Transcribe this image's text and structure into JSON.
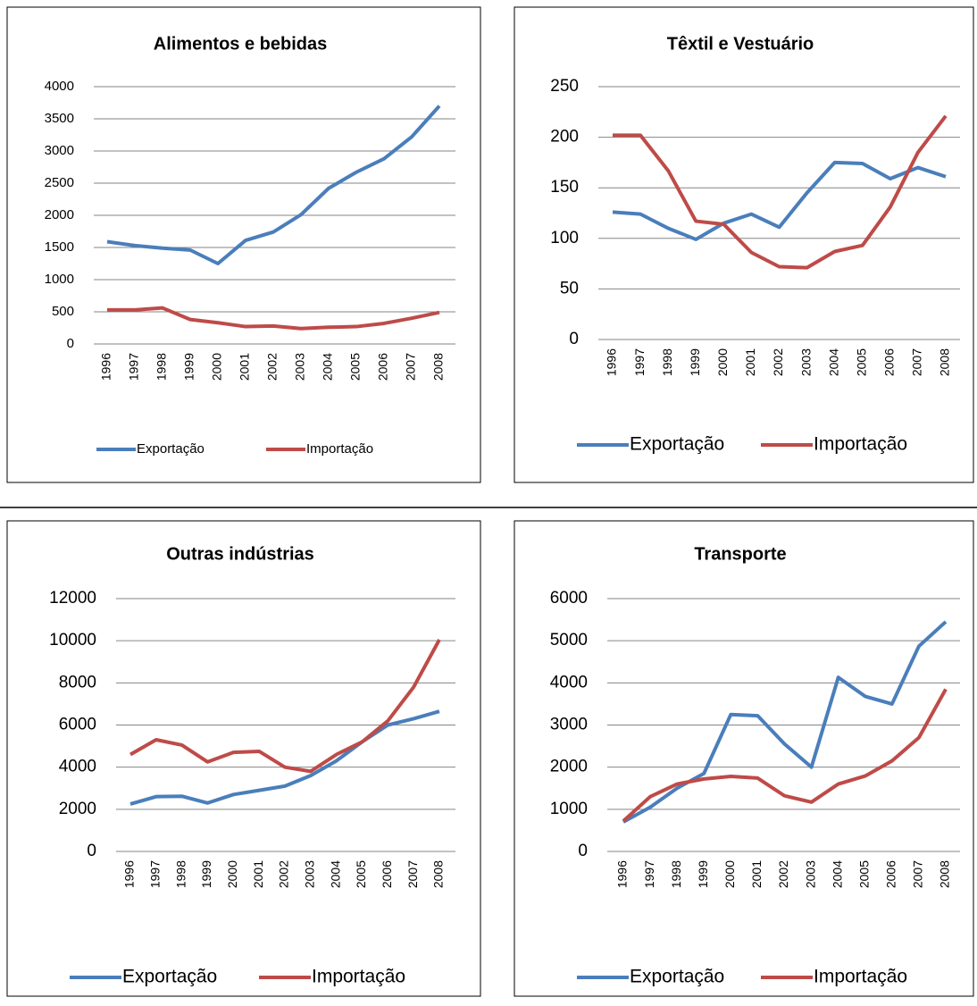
{
  "chart_data": [
    {
      "type": "line",
      "title": "Alimentos e bebidas",
      "categories": [
        "1996",
        "1997",
        "1998",
        "1999",
        "2000",
        "2001",
        "2002",
        "2003",
        "2004",
        "2005",
        "2006",
        "2007",
        "2008"
      ],
      "series": [
        {
          "name": "Exportação",
          "color": "#4a7ebb",
          "values": [
            1590,
            1530,
            1490,
            1460,
            1250,
            1610,
            1740,
            2010,
            2420,
            2670,
            2880,
            3220,
            3700
          ]
        },
        {
          "name": "Importação",
          "color": "#be4b48",
          "values": [
            530,
            530,
            560,
            380,
            330,
            270,
            280,
            240,
            260,
            270,
            320,
            400,
            490
          ]
        }
      ],
      "ylim": [
        0,
        4000
      ],
      "yticks": [
        0,
        500,
        1000,
        1500,
        2000,
        2500,
        3000,
        3500,
        4000
      ],
      "grid": true,
      "legend": "bottom"
    },
    {
      "type": "line",
      "title": "Têxtil e Vestuário",
      "categories": [
        "1996",
        "1997",
        "1998",
        "1999",
        "2000",
        "2001",
        "2002",
        "2003",
        "2004",
        "2005",
        "2006",
        "2007",
        "2008"
      ],
      "series": [
        {
          "name": "Exportação",
          "color": "#4a7ebb",
          "values": [
            126,
            124,
            110,
            99,
            115,
            124,
            111,
            145,
            175,
            174,
            159,
            170,
            161
          ]
        },
        {
          "name": "Importação",
          "color": "#be4b48",
          "values": [
            202,
            202,
            167,
            117,
            114,
            86,
            72,
            71,
            87,
            93,
            131,
            185,
            221
          ]
        }
      ],
      "ylim": [
        0,
        250
      ],
      "yticks": [
        0,
        50,
        100,
        150,
        200,
        250
      ],
      "grid": true,
      "legend": "bottom"
    },
    {
      "type": "line",
      "title": "Outras indústrias",
      "categories": [
        "1996",
        "1997",
        "1998",
        "1999",
        "2000",
        "2001",
        "2002",
        "2003",
        "2004",
        "2005",
        "2006",
        "2007",
        "2008"
      ],
      "series": [
        {
          "name": "Exportação",
          "color": "#4a7ebb",
          "values": [
            2250,
            2600,
            2620,
            2300,
            2700,
            2900,
            3100,
            3600,
            4300,
            5200,
            6000,
            6300,
            6650
          ]
        },
        {
          "name": "Importação",
          "color": "#be4b48",
          "values": [
            4600,
            5300,
            5050,
            4250,
            4700,
            4750,
            4000,
            3800,
            4600,
            5200,
            6200,
            7800,
            10050
          ]
        }
      ],
      "ylim": [
        0,
        12000
      ],
      "yticks": [
        0,
        2000,
        4000,
        6000,
        8000,
        10000,
        12000
      ],
      "grid": true,
      "legend": "bottom"
    },
    {
      "type": "line",
      "title": "Transporte",
      "categories": [
        "1996",
        "1997",
        "1998",
        "1999",
        "2000",
        "2001",
        "2002",
        "2003",
        "2004",
        "2005",
        "2006",
        "2007",
        "2008"
      ],
      "series": [
        {
          "name": "Exportação",
          "color": "#4a7ebb",
          "values": [
            700,
            1050,
            1500,
            1850,
            3250,
            3220,
            2550,
            2000,
            4130,
            3680,
            3500,
            4870,
            5450
          ]
        },
        {
          "name": "Importação",
          "color": "#be4b48",
          "values": [
            720,
            1300,
            1600,
            1720,
            1780,
            1740,
            1320,
            1170,
            1600,
            1790,
            2150,
            2700,
            3850
          ]
        }
      ],
      "ylim": [
        0,
        6000
      ],
      "yticks": [
        0,
        1000,
        2000,
        3000,
        4000,
        5000,
        6000
      ],
      "grid": true,
      "legend": "bottom"
    }
  ]
}
